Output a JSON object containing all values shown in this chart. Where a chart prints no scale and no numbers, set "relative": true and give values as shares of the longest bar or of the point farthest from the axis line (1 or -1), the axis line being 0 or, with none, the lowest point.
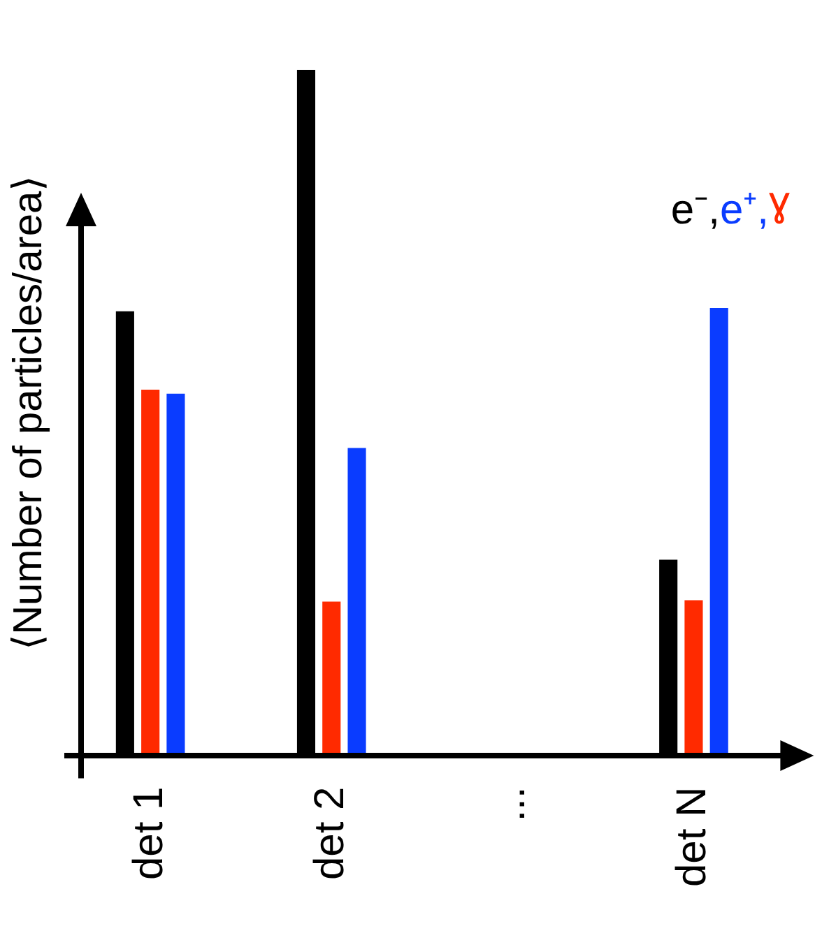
{
  "chart_data": {
    "type": "bar",
    "relative": true,
    "ylabel": "⟨Number of particles/area⟩",
    "categories": [
      "det 1",
      "det 2",
      "...",
      "det N"
    ],
    "legend": "top right",
    "grid": false,
    "series": [
      {
        "name": "e⁻,",
        "color": "#000000",
        "values": [
          0.648,
          1,
          null,
          0.286
        ]
      },
      {
        "name": "ɣ",
        "color": "#ff2a00",
        "values": [
          0.534,
          0.225,
          null,
          0.227
        ]
      },
      {
        "name": "e⁺,",
        "color": "#0a3cff",
        "values": [
          0.528,
          0.449,
          null,
          0.653
        ]
      }
    ]
  }
}
